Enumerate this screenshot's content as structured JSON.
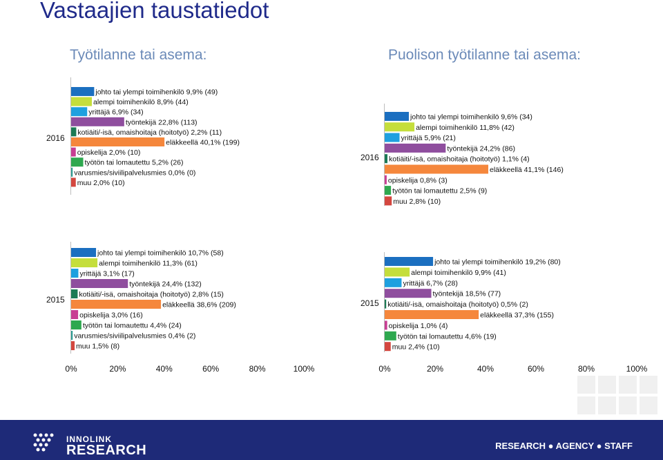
{
  "header": {
    "title": "Vastaajien taustatiedot",
    "left_subtitle": "Työtilanne tai asema:",
    "right_subtitle": "Puolison työtilanne tai asema:"
  },
  "footer": {
    "logo_line1": "INNOLINK",
    "logo_line2": "RESEARCH",
    "tagline": "RESEARCH ● AGENCY ● STAFF"
  },
  "colors": {
    "title": "#1f2a8a",
    "subtitle": "#6b8ab8",
    "footer": "#1e2a78",
    "johto": "#1b6fc0",
    "alempi": "#c5de3c",
    "yrittaja": "#1ea0df",
    "tyontekija": "#8f4e9e",
    "kotiaiti": "#1c7a55",
    "elakkeella": "#f5873c",
    "opiskelija": "#c83e93",
    "tyoton": "#2ea84f",
    "varusmies": "#2e9c93",
    "muu": "#d4473f"
  },
  "chart_data": [
    {
      "type": "bar",
      "orientation": "horizontal",
      "title": "Työtilanne tai asema:",
      "group": "2016",
      "xlim": [
        0,
        100
      ],
      "categories": [
        "johto tai ylempi toimihenkilö",
        "alempi toimihenkilö",
        "yrittäjä",
        "työntekijä",
        "kotiäiti/-isä, omaishoitaja (hoitotyö)",
        "eläkkeellä",
        "opiskelija",
        "työtön tai lomautettu",
        "varusmies/siviilipalvelusmies",
        "muu"
      ],
      "values": [
        9.9,
        8.9,
        6.9,
        22.8,
        2.2,
        40.1,
        2.0,
        5.2,
        0.0,
        2.0
      ],
      "labels": [
        "johto tai ylempi toimihenkilö 9,9% (49)",
        "alempi toimihenkilö 8,9% (44)",
        "yrittäjä 6,9% (34)",
        "työntekijä 22,8% (113)",
        "kotiäiti/-isä, omaishoitaja (hoitotyö) 2,2% (11)",
        "eläkkeellä 40,1% (199)",
        "opiskelija 2,0% (10)",
        "työtön tai lomautettu 5,2% (26)",
        "varusmies/siviilipalvelusmies 0,0% (0)",
        "muu 2,0% (10)"
      ]
    },
    {
      "type": "bar",
      "orientation": "horizontal",
      "title": "Puolison työtilanne tai asema:",
      "group": "2016",
      "xlim": [
        0,
        100
      ],
      "categories": [
        "johto tai ylempi toimihenkilö",
        "alempi toimihenkilö",
        "yrittäjä",
        "työntekijä",
        "kotiäiti/-isä, omaishoitaja (hoitotyö)",
        "eläkkeellä",
        "opiskelija",
        "työtön tai lomautettu",
        "muu"
      ],
      "values": [
        9.6,
        11.8,
        5.9,
        24.2,
        1.1,
        41.1,
        0.8,
        2.5,
        2.8
      ],
      "labels": [
        "johto tai ylempi toimihenkilö 9,6% (34)",
        "alempi toimihenkilö 11,8% (42)",
        "yrittäjä 5,9% (21)",
        "työntekijä 24,2% (86)",
        "kotiäiti/-isä, omaishoitaja (hoitotyö) 1,1% (4)",
        "eläkkeellä 41,1% (146)",
        "opiskelija 0,8% (3)",
        "työtön tai lomautettu 2,5% (9)",
        "muu 2,8% (10)"
      ]
    },
    {
      "type": "bar",
      "orientation": "horizontal",
      "title": "Työtilanne tai asema:",
      "group": "2015",
      "xlim": [
        0,
        100
      ],
      "xticks": [
        "0%",
        "20%",
        "40%",
        "60%",
        "80%",
        "100%"
      ],
      "categories": [
        "johto tai ylempi toimihenkilö",
        "alempi toimihenkilö",
        "yrittäjä",
        "työntekijä",
        "kotiäiti/-isä, omaishoitaja (hoitotyö)",
        "eläkkeellä",
        "opiskelija",
        "työtön tai lomautettu",
        "varusmies/siviilipalvelusmies",
        "muu"
      ],
      "values": [
        10.7,
        11.3,
        3.1,
        24.4,
        2.8,
        38.6,
        3.0,
        4.4,
        0.4,
        1.5
      ],
      "labels": [
        "johto tai ylempi toimihenkilö 10,7% (58)",
        "alempi toimihenkilö 11,3% (61)",
        "yrittäjä 3,1% (17)",
        "työntekijä 24,4% (132)",
        "kotiäiti/-isä, omaishoitaja (hoitotyö) 2,8% (15)",
        "eläkkeellä 38,6% (209)",
        "opiskelija 3,0% (16)",
        "työtön tai lomautettu 4,4% (24)",
        "varusmies/siviilipalvelusmies 0,4% (2)",
        "muu 1,5% (8)"
      ]
    },
    {
      "type": "bar",
      "orientation": "horizontal",
      "title": "Puolison työtilanne tai asema:",
      "group": "2015",
      "xlim": [
        0,
        100
      ],
      "xticks": [
        "0%",
        "20%",
        "40%",
        "60%",
        "80%",
        "100%"
      ],
      "categories": [
        "johto tai ylempi toimihenkilö",
        "alempi toimihenkilö",
        "yrittäjä",
        "työntekijä",
        "kotiäiti/-isä, omaishoitaja (hoitotyö)",
        "eläkkeellä",
        "opiskelija",
        "työtön tai lomautettu",
        "muu"
      ],
      "values": [
        19.2,
        9.9,
        6.7,
        18.5,
        0.5,
        37.3,
        1.0,
        4.6,
        2.4
      ],
      "labels": [
        "johto tai ylempi toimihenkilö 19,2% (80)",
        "alempi toimihenkilö 9,9% (41)",
        "yrittäjä 6,7% (28)",
        "työntekijä 18,5% (77)",
        "kotiäiti/-isä, omaishoitaja (hoitotyö) 0,5% (2)",
        "eläkkeellä 37,3% (155)",
        "opiskelija 1,0% (4)",
        "työtön tai lomautettu 4,6% (19)",
        "muu 2,4% (10)"
      ]
    }
  ]
}
